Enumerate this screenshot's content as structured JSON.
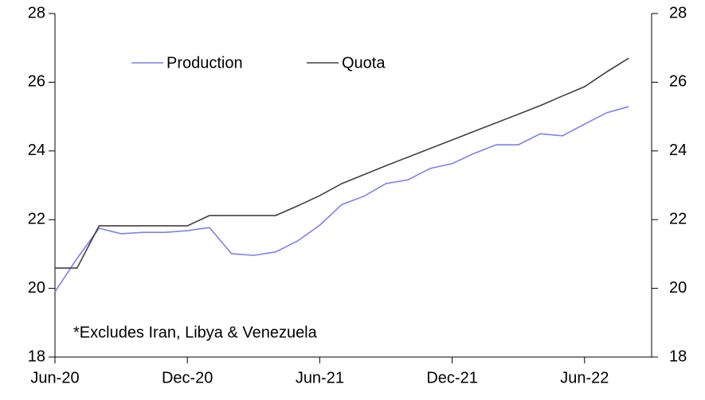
{
  "chart_data": {
    "type": "line",
    "categories": [
      "Jun-20",
      null,
      null,
      null,
      null,
      null,
      "Dec-20",
      null,
      null,
      null,
      null,
      null,
      "Jun-21",
      null,
      null,
      null,
      null,
      null,
      "Dec-21",
      null,
      null,
      null,
      null,
      null,
      "Jun-22",
      null,
      null
    ],
    "series": [
      {
        "name": "Production",
        "color": "#7f7ff0",
        "values": [
          19.9,
          20.87,
          21.75,
          21.59,
          21.63,
          21.63,
          21.68,
          21.77,
          21.01,
          20.96,
          21.06,
          21.38,
          21.84,
          22.44,
          22.68,
          23.05,
          23.16,
          23.49,
          23.63,
          23.93,
          24.18,
          24.18,
          24.5,
          24.44,
          24.78,
          25.11,
          25.29
        ]
      },
      {
        "name": "Quota",
        "color": "#404040",
        "values": [
          20.59,
          20.59,
          21.82,
          21.82,
          21.82,
          21.82,
          21.82,
          22.12,
          22.12,
          22.12,
          22.12,
          22.4,
          22.7,
          23.05,
          23.31,
          23.57,
          23.82,
          24.07,
          24.32,
          24.57,
          24.82,
          25.07,
          25.32,
          25.6,
          25.87,
          26.3,
          26.7
        ]
      }
    ],
    "ylim": [
      18,
      28
    ],
    "yticks": [
      18,
      20,
      22,
      24,
      26,
      28
    ],
    "y2lim": [
      18,
      28
    ],
    "y2ticks": [
      18,
      20,
      22,
      24,
      26,
      28
    ],
    "annotation": "*Excludes Iran, Libya & Venezuela",
    "legend": "top-left"
  }
}
